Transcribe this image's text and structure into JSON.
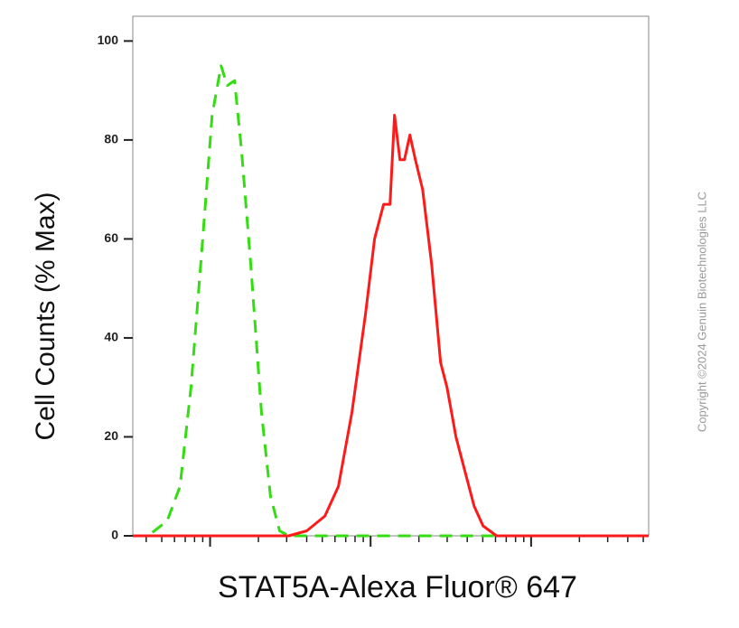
{
  "chart_data": {
    "type": "line",
    "xlabel": "STAT5A-Alexa Fluor® 647",
    "ylabel": "Cell Counts (% Max)",
    "watermark": "Copyright ©2024 Genuin Biotechnologies LLC",
    "xscale": "log",
    "xlim": [
      33,
      54000
    ],
    "xticks": [
      40,
      50,
      60,
      70,
      80,
      90,
      100,
      200,
      300,
      400,
      500,
      600,
      700,
      800,
      900,
      1000,
      2000,
      3000,
      4000,
      5000,
      6000,
      7000,
      8000,
      9000,
      10000,
      20000,
      30000,
      40000,
      50000
    ],
    "ylim": [
      0,
      105
    ],
    "yticks": [
      0,
      20,
      40,
      60,
      80,
      100
    ],
    "series": [
      {
        "color": "#33dd11",
        "dash": true,
        "x": [
          33,
          41,
          54,
          65,
          76,
          90,
          103,
          117,
          128,
          142,
          157,
          179,
          209,
          238,
          271,
          309,
          54000
        ],
        "values": [
          0,
          0,
          3,
          10,
          30,
          60,
          85,
          95,
          91,
          92,
          78,
          55,
          25,
          8,
          1,
          0,
          0
        ]
      },
      {
        "color": "#ff1a1a",
        "dash": false,
        "x": [
          33,
          309,
          400,
          519,
          630,
          766,
          931,
          1059,
          1205,
          1321,
          1409,
          1524,
          1626,
          1758,
          1901,
          2109,
          2399,
          2729,
          2992,
          3404,
          3873,
          4416,
          5023,
          6095,
          54000
        ],
        "values": [
          0,
          0,
          1,
          4,
          10,
          25,
          45,
          60,
          67,
          67,
          85,
          76,
          76,
          81,
          76,
          70,
          55,
          35,
          30,
          20,
          13,
          6,
          2,
          0,
          0
        ]
      }
    ]
  }
}
